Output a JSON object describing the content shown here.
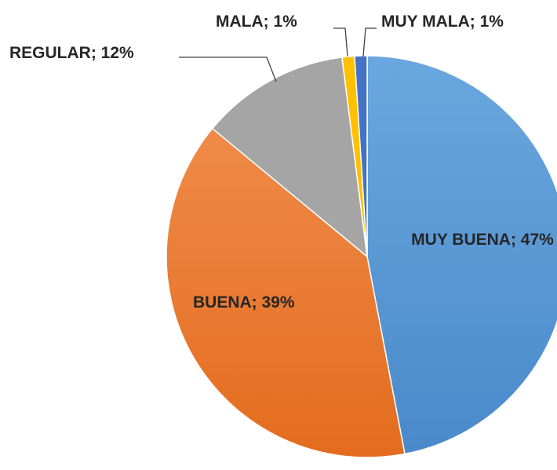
{
  "chart_data": {
    "type": "pie",
    "values": [
      47,
      39,
      12,
      1,
      1
    ],
    "value_labels": [
      "MUY BUENA; 47%",
      "BUENA; 39%",
      "REGULAR; 12%",
      "MALA; 1%",
      "MUY MALA; 1%"
    ],
    "colors": [
      "#5b9bd5",
      "#ed7d31",
      "#a5a5a5",
      "#ffc000",
      "#4472c4"
    ]
  }
}
